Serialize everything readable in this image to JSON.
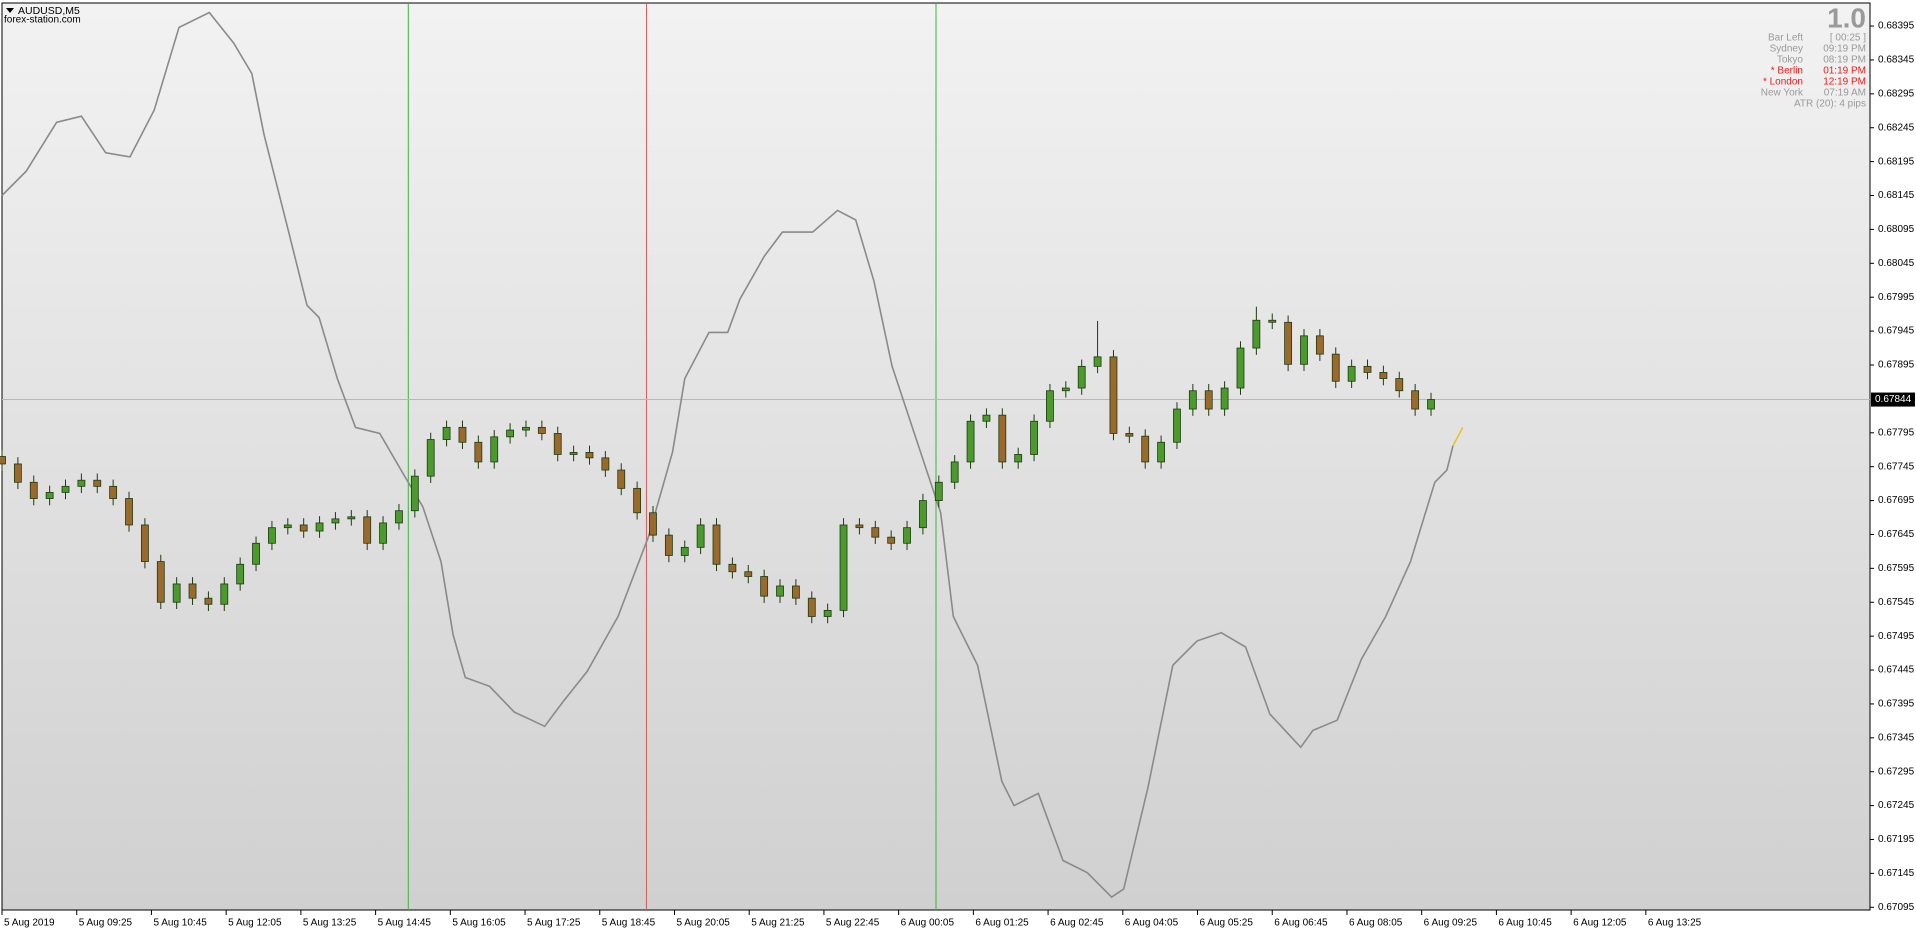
{
  "chart_data": {
    "type": "candlestick",
    "symbol": "AUDUSD,M5",
    "watermark": "forex-station.com",
    "x": [
      0,
      3.4,
      6.8,
      10.2,
      13.6,
      17,
      20.4,
      23.8,
      27.2,
      30.6,
      34,
      37.4,
      40.8,
      44.2,
      47.6,
      51,
      54.4,
      57.8,
      61.2,
      64.6,
      68,
      71.4,
      74.8,
      78.2,
      81.6,
      85,
      88.4,
      91.8,
      95.2,
      98.6,
      102,
      105.4,
      108.8,
      112.2,
      115.6,
      119,
      122.4,
      125.8,
      129.2,
      132.6,
      136,
      139.4,
      142.8,
      146.2,
      149.6,
      153,
      156.4,
      159.8,
      163.2,
      166.6,
      170,
      173.4,
      176.8,
      180.2,
      183.6,
      187,
      190.4,
      193.8,
      197.2,
      200.6,
      204,
      207.4,
      210.8,
      214.2,
      217.6,
      221,
      224.4,
      227.8,
      231.2,
      234.6,
      238,
      241.4,
      244.8,
      248.2,
      251.6,
      255,
      258.4,
      261.8,
      265.2,
      268.6,
      272,
      275.4,
      278.8,
      282.2,
      285.6,
      289,
      292.4,
      295.8,
      299.2,
      302.6,
      306
    ],
    "open": [
      0.6776,
      0.67749,
      0.67722,
      0.67698,
      0.67707,
      0.67716,
      0.67725,
      0.67716,
      0.67698,
      0.67659,
      0.67605,
      0.67545,
      0.67572,
      0.67551,
      0.67542,
      0.67572,
      0.67601,
      0.67632,
      0.67655,
      0.67659,
      0.6765,
      0.67662,
      0.67668,
      0.67671,
      0.67632,
      0.67662,
      0.6768,
      0.67731,
      0.67785,
      0.67803,
      0.67781,
      0.67752,
      0.67789,
      0.67799,
      0.67803,
      0.67794,
      0.67763,
      0.67766,
      0.67758,
      0.6774,
      0.67713,
      0.67677,
      0.67644,
      0.67614,
      0.67626,
      0.67659,
      0.67601,
      0.6759,
      0.67583,
      0.67554,
      0.67569,
      0.67551,
      0.67524,
      0.67533,
      0.67659,
      0.67655,
      0.67641,
      0.67632,
      0.67655,
      0.67695,
      0.67722,
      0.67752,
      0.67812,
      0.67821,
      0.67752,
      0.67763,
      0.67812,
      0.67857,
      0.67861,
      0.67893,
      0.67907,
      0.67794,
      0.6779,
      0.67752,
      0.67781,
      0.6783,
      0.67857,
      0.6783,
      0.67861,
      0.6792,
      0.67961,
      0.67958,
      0.67896,
      0.67938,
      0.67911,
      0.67871,
      0.67893,
      0.67884,
      0.67875,
      0.67857,
      0.6783
    ],
    "high": [
      0.6777,
      0.67759,
      0.67732,
      0.67717,
      0.67726,
      0.67735,
      0.67735,
      0.67726,
      0.67708,
      0.67669,
      0.67615,
      0.67582,
      0.67582,
      0.67561,
      0.67582,
      0.67611,
      0.67642,
      0.67665,
      0.67669,
      0.67669,
      0.67672,
      0.67678,
      0.67681,
      0.67681,
      0.67672,
      0.6769,
      0.67741,
      0.67795,
      0.67813,
      0.67813,
      0.67791,
      0.67799,
      0.67809,
      0.67813,
      0.67813,
      0.67804,
      0.67776,
      0.67776,
      0.67768,
      0.6775,
      0.67723,
      0.67687,
      0.67654,
      0.67636,
      0.67669,
      0.67669,
      0.67611,
      0.676,
      0.67593,
      0.67579,
      0.67579,
      0.67561,
      0.67543,
      0.67669,
      0.67669,
      0.67665,
      0.67651,
      0.67665,
      0.67705,
      0.67732,
      0.67762,
      0.67822,
      0.67831,
      0.67831,
      0.67773,
      0.67822,
      0.67867,
      0.67871,
      0.67903,
      0.6796,
      0.67917,
      0.67804,
      0.678,
      0.67791,
      0.6784,
      0.67867,
      0.67867,
      0.67871,
      0.6793,
      0.67981,
      0.67971,
      0.67968,
      0.67948,
      0.67948,
      0.67921,
      0.67903,
      0.67903,
      0.67894,
      0.67885,
      0.67867,
      0.67854
    ],
    "low": [
      0.67739,
      0.67712,
      0.67688,
      0.67688,
      0.67697,
      0.67706,
      0.67706,
      0.67688,
      0.67649,
      0.67595,
      0.67535,
      0.67535,
      0.67541,
      0.67532,
      0.67532,
      0.67562,
      0.67591,
      0.67622,
      0.67645,
      0.6764,
      0.6764,
      0.67652,
      0.67658,
      0.67622,
      0.67622,
      0.67652,
      0.6767,
      0.67721,
      0.67775,
      0.67771,
      0.67742,
      0.67742,
      0.67779,
      0.67789,
      0.67784,
      0.67753,
      0.67753,
      0.67748,
      0.6773,
      0.67703,
      0.67667,
      0.67634,
      0.67604,
      0.67604,
      0.67616,
      0.67591,
      0.6758,
      0.67573,
      0.67544,
      0.67544,
      0.67541,
      0.67514,
      0.67514,
      0.67523,
      0.67645,
      0.67631,
      0.67622,
      0.67622,
      0.67645,
      0.67685,
      0.67712,
      0.67742,
      0.67802,
      0.67742,
      0.67742,
      0.67753,
      0.67802,
      0.67847,
      0.67851,
      0.67883,
      0.67784,
      0.6778,
      0.67742,
      0.67742,
      0.67771,
      0.6782,
      0.6782,
      0.6782,
      0.67851,
      0.6791,
      0.67948,
      0.67886,
      0.67886,
      0.67901,
      0.67861,
      0.67861,
      0.67874,
      0.67865,
      0.67847,
      0.6782,
      0.6782
    ],
    "close": [
      0.67749,
      0.67722,
      0.67698,
      0.67707,
      0.67716,
      0.67725,
      0.67716,
      0.67698,
      0.67659,
      0.67605,
      0.67545,
      0.67572,
      0.67551,
      0.67542,
      0.67572,
      0.67601,
      0.67632,
      0.67655,
      0.67659,
      0.6765,
      0.67662,
      0.67668,
      0.67671,
      0.67632,
      0.67662,
      0.6768,
      0.67731,
      0.67785,
      0.67803,
      0.67781,
      0.67752,
      0.67789,
      0.67799,
      0.67803,
      0.67794,
      0.67763,
      0.67766,
      0.67758,
      0.6774,
      0.67713,
      0.67677,
      0.67644,
      0.67614,
      0.67626,
      0.67659,
      0.67601,
      0.6759,
      0.67583,
      0.67554,
      0.67569,
      0.67551,
      0.67524,
      0.67533,
      0.67659,
      0.67655,
      0.67641,
      0.67632,
      0.67655,
      0.67695,
      0.67722,
      0.67752,
      0.67812,
      0.67821,
      0.67752,
      0.67763,
      0.67812,
      0.67857,
      0.67861,
      0.67893,
      0.67907,
      0.67794,
      0.6779,
      0.67752,
      0.67781,
      0.6783,
      0.67857,
      0.6783,
      0.67861,
      0.6792,
      0.67961,
      0.67958,
      0.67896,
      0.67938,
      0.67911,
      0.67871,
      0.67893,
      0.67884,
      0.67875,
      0.67857,
      0.6783,
      0.67844
    ],
    "up_color": "#4a9a2c",
    "down_color": "#9a6a2c",
    "wick_color": "#1f3a12",
    "lines": [
      {
        "color": "#8a8a8a",
        "x": [
          0,
          5.2,
          11.7,
          17,
          22.2,
          27.4,
          32.6,
          37.9,
          44.4,
          49.6,
          53.5,
          56.1,
          61.4,
          65.3,
          67.9,
          71.8,
          75.7,
          80.9,
          86.2,
          90.1,
          94,
          96.6,
          99.2,
          104.4,
          109.7,
          116.2,
          120.1,
          125.3,
          131.9,
          138.4,
          143.6,
          146.2,
          151.4,
          155.4,
          158,
          163.2,
          167.1,
          173.6,
          178.9,
          182.8,
          186.7,
          190.6,
          195.8,
          201,
          203.7,
          208.9,
          214.1,
          216.7,
          221.9,
          227.2,
          232.4,
          237.6,
          240.2,
          245.4,
          250.7,
          255.9,
          261.1,
          266.3,
          271.5,
          278.1,
          280.7,
          285.9,
          291.1,
          296.3,
          301.6,
          306.8,
          309.4,
          310.7
        ],
        "values": [
          0.68145,
          0.68181,
          0.68253,
          0.68262,
          0.68208,
          0.68202,
          0.68271,
          0.68393,
          0.68415,
          0.6837,
          0.68325,
          0.68235,
          0.68091,
          0.67983,
          0.67965,
          0.67875,
          0.67803,
          0.67794,
          0.67731,
          0.67686,
          0.67605,
          0.67497,
          0.67434,
          0.67421,
          0.67383,
          0.67362,
          0.67398,
          0.67443,
          0.67524,
          0.67641,
          0.67767,
          0.67875,
          0.67943,
          0.67943,
          0.67992,
          0.68055,
          0.68091,
          0.68091,
          0.68123,
          0.68109,
          0.68019,
          0.67893,
          0.67785,
          0.67677,
          0.67524,
          0.67452,
          0.67281,
          0.67245,
          0.67263,
          0.67164,
          0.67146,
          0.6711,
          0.67122,
          0.67272,
          0.67452,
          0.67488,
          0.675,
          0.67479,
          0.6738,
          0.67331,
          0.67356,
          0.67371,
          0.67461,
          0.67524,
          0.67605,
          0.67722,
          0.6774,
          0.67776
        ]
      },
      {
        "color": "#e8c428",
        "x": [
          310.7,
          312.8
        ],
        "values": [
          0.67776,
          0.67803
        ]
      }
    ],
    "vlines": [
      {
        "value": 87,
        "color": "#3cb43c"
      },
      {
        "value": 138,
        "color": "#d06060"
      },
      {
        "value": 200,
        "color": "#3cb43c"
      }
    ],
    "current_price": 0.67844,
    "grid": false,
    "xlim": [
      0,
      400
    ],
    "xticks": [
      {
        "value": 0,
        "label": "5 Aug 2019"
      },
      {
        "value": 16,
        "label": "5 Aug 09:25"
      },
      {
        "value": 32,
        "label": "5 Aug 10:45"
      },
      {
        "value": 48,
        "label": "5 Aug 12:05"
      },
      {
        "value": 64,
        "label": "5 Aug 13:25"
      },
      {
        "value": 80,
        "label": "5 Aug 14:45"
      },
      {
        "value": 96,
        "label": "5 Aug 16:05"
      },
      {
        "value": 112,
        "label": "5 Aug 17:25"
      },
      {
        "value": 128,
        "label": "5 Aug 18:45"
      },
      {
        "value": 144,
        "label": "5 Aug 20:05"
      },
      {
        "value": 160,
        "label": "5 Aug 21:25"
      },
      {
        "value": 176,
        "label": "5 Aug 22:45"
      },
      {
        "value": 192,
        "label": "6 Aug 00:05"
      },
      {
        "value": 208,
        "label": "6 Aug 01:25"
      },
      {
        "value": 224,
        "label": "6 Aug 02:45"
      },
      {
        "value": 240,
        "label": "6 Aug 04:05"
      },
      {
        "value": 256,
        "label": "6 Aug 05:25"
      },
      {
        "value": 272,
        "label": "6 Aug 06:45"
      },
      {
        "value": 288,
        "label": "6 Aug 08:05"
      },
      {
        "value": 304,
        "label": "6 Aug 09:25"
      },
      {
        "value": 320,
        "label": "6 Aug 10:45"
      },
      {
        "value": 336,
        "label": "6 Aug 12:05"
      },
      {
        "value": 352,
        "label": "6 Aug 13:25"
      }
    ],
    "ylim": [
      0.67091,
      0.68429
    ],
    "yticks": [
      0.68395,
      0.68345,
      0.68295,
      0.68245,
      0.68195,
      0.68145,
      0.68095,
      0.68045,
      0.67995,
      0.67945,
      0.67895,
      0.67795,
      0.67745,
      0.67695,
      0.67645,
      0.67595,
      0.67545,
      0.67495,
      0.67445,
      0.67395,
      0.67345,
      0.67295,
      0.67245,
      0.67195,
      0.67145,
      0.67095
    ]
  },
  "info_panel": {
    "title": "1.0",
    "rows": [
      {
        "label": "Bar Left",
        "value": "[ 00:25 ]",
        "color": "#9a9a9a"
      },
      {
        "label": "Sydney",
        "value": "09:19 PM",
        "color": "#9a9a9a"
      },
      {
        "label": "Tokyo",
        "value": "08:19 PM",
        "color": "#9a9a9a"
      },
      {
        "label": "* Berlin",
        "value": "01:19 PM",
        "color": "#e02020"
      },
      {
        "label": "* London",
        "value": "12:19 PM",
        "color": "#e02020"
      },
      {
        "label": "New York",
        "value": "07:19 AM",
        "color": "#9a9a9a"
      }
    ],
    "footer": "ATR (20): 4 pips"
  }
}
